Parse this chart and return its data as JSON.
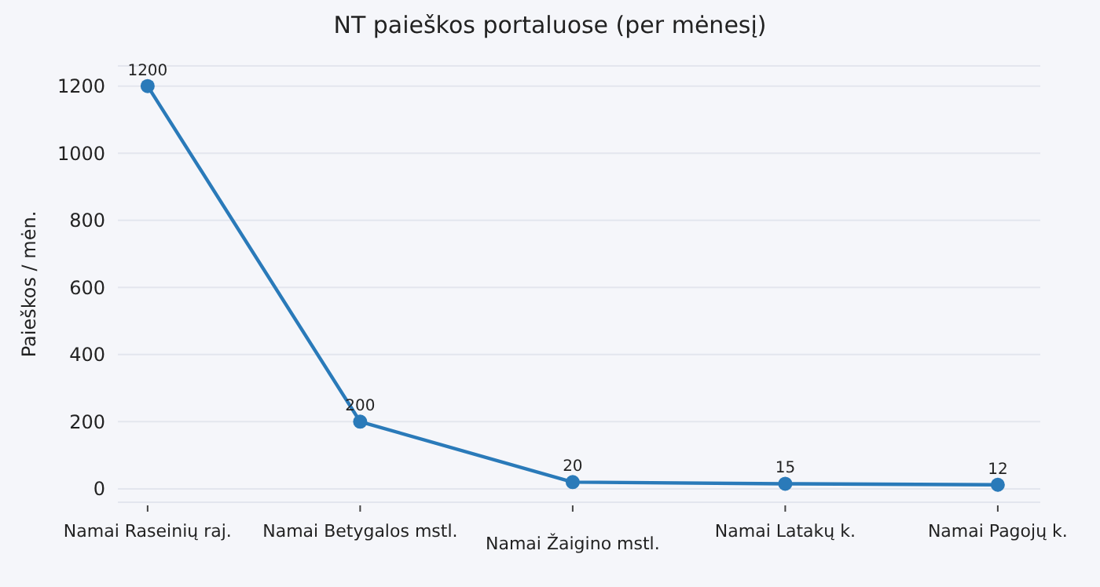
{
  "chart_data": {
    "type": "line",
    "title": "NT paieškos portaluose (per mėnesį)",
    "ylabel": "Paieškos / mėn.",
    "categories": [
      "Namai Raseinių raj.",
      "Namai Betygalos mstl.",
      "Namai Žaigino mstl.",
      "Namai Latakų k.",
      "Namai Pagojų k."
    ],
    "series": [
      {
        "color": "#2a7ab9",
        "values": [
          1200,
          200,
          20,
          15,
          12
        ]
      }
    ],
    "ylim": [
      -40,
      1260
    ],
    "yticks": [
      0,
      200,
      400,
      600,
      800,
      1000,
      1200
    ],
    "grid": "y",
    "marker": "circle",
    "line_style": "solid",
    "data_labels": true,
    "legend": false
  }
}
